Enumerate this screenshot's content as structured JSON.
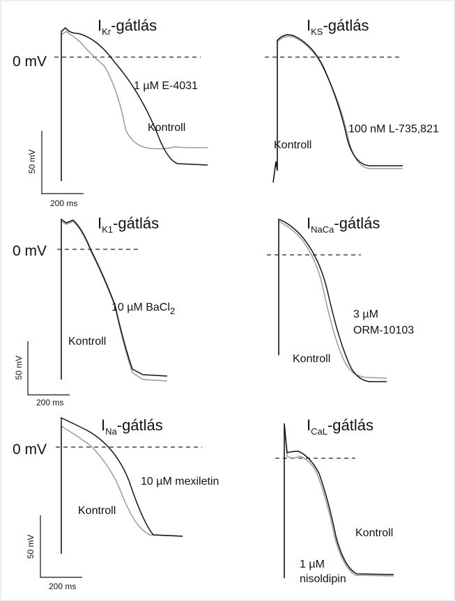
{
  "panels": [
    {
      "title": {
        "current": "I",
        "sub": "Kr",
        "suffix": "-gátlás"
      },
      "zero_label": "0 mV",
      "drug_label": [
        {
          "text": "1 µM E-4031"
        }
      ],
      "control_label": "Kontroll"
    },
    {
      "title": {
        "current": "I",
        "sub": "KS",
        "suffix": "-gátlás"
      },
      "drug_label": [
        {
          "text": "100 nM L-735,821"
        }
      ],
      "control_label": "Kontroll"
    },
    {
      "title": {
        "current": "I",
        "sub": "K1",
        "suffix": "-gátlás"
      },
      "zero_label": "0 mV",
      "drug_label": [
        {
          "text": "10 µM BaCl",
          "sub": "2"
        }
      ],
      "control_label": "Kontroll"
    },
    {
      "title": {
        "current": "I",
        "sub": "NaCa",
        "suffix": "-gátlás"
      },
      "drug_label": [
        {
          "text": "3 µM"
        },
        {
          "text": "ORM-10103"
        }
      ],
      "control_label": "Kontroll"
    },
    {
      "title": {
        "current": "I",
        "sub": "Na",
        "suffix": "-gátlás"
      },
      "zero_label": "0 mV",
      "drug_label": [
        {
          "text": "10 µM mexiletin"
        }
      ],
      "control_label": "Kontroll"
    },
    {
      "title": {
        "current": "I",
        "sub": "CaL",
        "suffix": "-gátlás"
      },
      "drug_label": [
        {
          "text": "1 µM"
        },
        {
          "text": "nisoldipin"
        }
      ],
      "control_label": "Kontroll"
    }
  ],
  "scale_bars": [
    {
      "voltage": "50 mV",
      "time": "200 ms"
    },
    {
      "voltage": "50 mV",
      "time": "200 ms"
    },
    {
      "voltage": "50 mV",
      "time": "200 ms"
    }
  ]
}
